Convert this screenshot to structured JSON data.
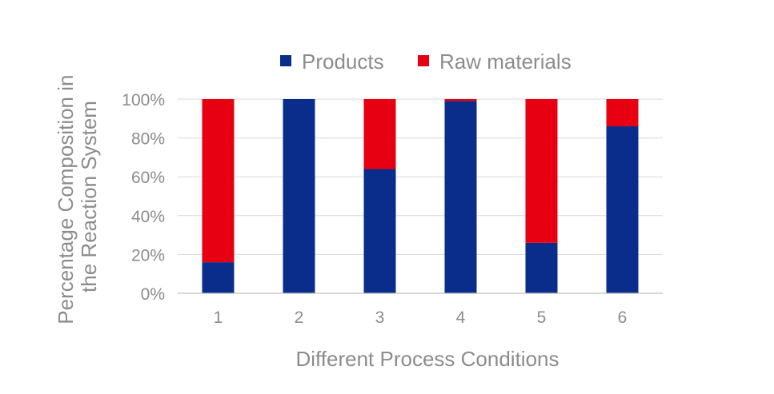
{
  "chart_data": {
    "type": "bar",
    "stacked": true,
    "categories": [
      "1",
      "2",
      "3",
      "4",
      "5",
      "6"
    ],
    "series": [
      {
        "name": "Products",
        "color": "#0a2d8c",
        "values": [
          16,
          100,
          64,
          99,
          26,
          86
        ]
      },
      {
        "name": "Raw materials",
        "color": "#e60012",
        "values": [
          84,
          0,
          36,
          1,
          74,
          14
        ]
      }
    ],
    "title": "",
    "xlabel": "Different Process Conditions",
    "ylabel_lines": [
      "Percentage Composition in",
      "the Reaction System"
    ],
    "ylim": [
      0,
      100
    ],
    "yticks": [
      0,
      20,
      40,
      60,
      80,
      100
    ],
    "ytick_labels": [
      "0%",
      "20%",
      "40%",
      "60%",
      "80%",
      "100%"
    ],
    "grid": true,
    "legend_position": "top"
  }
}
